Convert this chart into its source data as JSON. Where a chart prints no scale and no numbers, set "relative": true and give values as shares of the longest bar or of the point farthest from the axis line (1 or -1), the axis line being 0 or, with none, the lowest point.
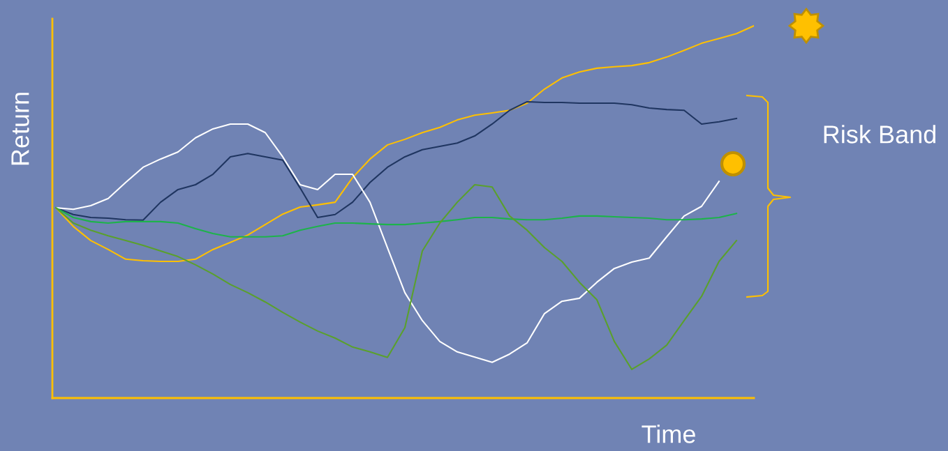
{
  "chart_data": {
    "type": "line",
    "relative": true,
    "xlabel": "Time",
    "ylabel": "Return",
    "annotations": [
      "Risk Band"
    ],
    "legend": false,
    "marker": "none",
    "categories": [
      null,
      null,
      null,
      null,
      null,
      null,
      null,
      null,
      null,
      null,
      null,
      null,
      null,
      null,
      null,
      null,
      null,
      null,
      null,
      null,
      null,
      null,
      null,
      null,
      null,
      null,
      null,
      null,
      null,
      null,
      null,
      null,
      null,
      null,
      null,
      null,
      null,
      null,
      null,
      null,
      null
    ],
    "series": [
      {
        "color": "#ffc000",
        "values": [
          0.511,
          0.461,
          0.423,
          0.399,
          0.373,
          0.369,
          0.367,
          0.367,
          0.373,
          0.399,
          0.418,
          0.438,
          0.466,
          0.494,
          0.513,
          0.519,
          0.526,
          0.592,
          0.642,
          0.68,
          0.695,
          0.713,
          0.727,
          0.747,
          0.76,
          0.766,
          0.773,
          0.792,
          0.83,
          0.86,
          0.876,
          0.886,
          0.89,
          0.893,
          0.901,
          0.916,
          0.934,
          0.953,
          0.966,
          0.979,
          1
        ]
      },
      {
        "color": "#1f3560",
        "values": [
          0.511,
          0.493,
          0.485,
          0.483,
          0.479,
          0.478,
          0.526,
          0.56,
          0.573,
          0.601,
          0.648,
          0.657,
          0.648,
          0.639,
          0.564,
          0.485,
          0.493,
          0.526,
          0.579,
          0.62,
          0.648,
          0.667,
          0.676,
          0.685,
          0.704,
          0.736,
          0.773,
          0.796,
          0.794,
          0.794,
          0.792,
          0.792,
          0.792,
          0.788,
          0.779,
          0.775,
          0.773,
          0.736,
          0.742,
          0.751,
          null
        ]
      },
      {
        "color": "#ffffff",
        "values": [
          0.511,
          0.507,
          0.517,
          0.536,
          0.579,
          0.62,
          0.642,
          0.661,
          0.699,
          0.723,
          0.736,
          0.736,
          0.713,
          0.648,
          0.573,
          0.56,
          0.601,
          0.601,
          0.526,
          0.404,
          0.283,
          0.208,
          0.152,
          0.124,
          0.11,
          0.096,
          0.118,
          0.148,
          0.227,
          0.26,
          0.268,
          0.311,
          0.348,
          0.365,
          0.376,
          0.433,
          0.489,
          0.515,
          0.582,
          null,
          null
        ]
      },
      {
        "color": "#1db34a",
        "values": [
          0.511,
          0.485,
          0.474,
          0.47,
          0.474,
          0.474,
          0.474,
          0.47,
          0.455,
          0.442,
          0.433,
          0.433,
          0.433,
          0.436,
          0.451,
          0.461,
          0.47,
          0.47,
          0.468,
          0.466,
          0.466,
          0.47,
          0.474,
          0.479,
          0.485,
          0.485,
          0.481,
          0.479,
          0.479,
          0.483,
          0.489,
          0.489,
          0.487,
          0.485,
          0.483,
          0.479,
          0.479,
          0.481,
          0.485,
          0.496,
          null
        ]
      },
      {
        "color": "#5aa02c",
        "values": [
          0.511,
          0.47,
          0.451,
          0.436,
          0.423,
          0.41,
          0.395,
          0.38,
          0.358,
          0.333,
          0.305,
          0.283,
          0.258,
          0.23,
          0.204,
          0.18,
          0.161,
          0.137,
          0.124,
          0.109,
          0.189,
          0.395,
          0.47,
          0.526,
          0.573,
          0.567,
          0.489,
          0.451,
          0.404,
          0.367,
          0.311,
          0.264,
          0.152,
          0.077,
          0.105,
          0.142,
          0.208,
          0.273,
          0.367,
          0.423,
          null
        ]
      }
    ]
  }
}
